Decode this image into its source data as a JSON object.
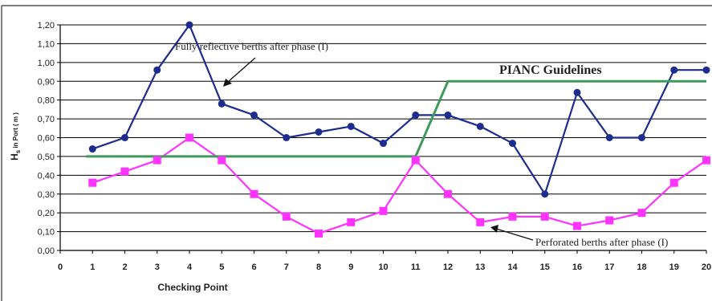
{
  "chart_data": {
    "type": "line",
    "xlabel": "Checking Point",
    "ylabel": "Hs in Port ( m )",
    "ylabel_main": "H",
    "ylabel_sub": "s",
    "ylabel_rest": " in Port ( m )",
    "x": [
      1,
      2,
      3,
      4,
      5,
      6,
      7,
      8,
      9,
      10,
      11,
      12,
      13,
      14,
      15,
      16,
      17,
      18,
      19,
      20
    ],
    "x_ticks": [
      0,
      1,
      2,
      3,
      4,
      5,
      6,
      7,
      8,
      9,
      10,
      11,
      12,
      13,
      14,
      15,
      16,
      17,
      18,
      19,
      20
    ],
    "ylim": [
      0,
      1.2
    ],
    "y_ticks": [
      "0,00",
      "0,10",
      "0,20",
      "0,30",
      "0,40",
      "0,50",
      "0,60",
      "0,70",
      "0,80",
      "0,90",
      "1,00",
      "1,10",
      "1,20"
    ],
    "grid": "horizontal",
    "series": [
      {
        "label": "fully-reflective",
        "color": "#1c2c8f",
        "marker": "circle",
        "values": [
          0.54,
          0.6,
          0.96,
          1.2,
          0.78,
          0.72,
          0.6,
          0.63,
          0.66,
          0.57,
          0.72,
          0.72,
          0.66,
          0.57,
          0.3,
          0.84,
          0.6,
          0.6,
          0.96,
          0.96
        ]
      },
      {
        "label": "perforated",
        "color": "#ff33ff",
        "marker": "square",
        "values": [
          0.36,
          0.42,
          0.48,
          0.6,
          0.48,
          0.3,
          0.18,
          0.09,
          0.15,
          0.21,
          0.48,
          0.3,
          0.15,
          0.18,
          0.18,
          0.13,
          0.16,
          0.2,
          0.36,
          0.48
        ]
      },
      {
        "label": "pianc",
        "color": "#3f9a5a",
        "marker": "none",
        "points": [
          [
            0.8,
            0.5
          ],
          [
            11,
            0.5
          ],
          [
            12,
            0.9
          ],
          [
            20,
            0.9
          ]
        ]
      }
    ],
    "annotations": [
      {
        "text": "Fully reflective berths after phase (I)"
      },
      {
        "text": "PIANC Guidelines"
      },
      {
        "text": "Perforated berths after phase (I)"
      }
    ]
  }
}
